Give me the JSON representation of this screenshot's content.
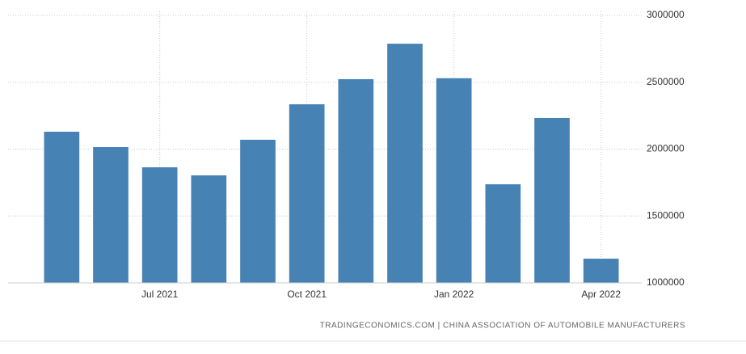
{
  "chart_data": {
    "type": "bar",
    "source": "TRADINGECONOMICS.COM  |  CHINA ASSOCIATION OF AUTOMOBILE MANUFACTURERS",
    "categories": [
      null,
      null,
      "Jul 2021",
      null,
      null,
      "Oct 2021",
      null,
      null,
      "Jan 2022",
      null,
      null,
      "Apr 2022"
    ],
    "values": [
      2130000,
      2015000,
      1864000,
      1804000,
      2070000,
      2335000,
      2523000,
      2788000,
      2530000,
      1737000,
      2233000,
      1181000
    ],
    "color": "#4682b4",
    "ylim": [
      1000000,
      3000000
    ],
    "yticks": [
      1000000,
      1500000,
      2000000,
      2500000,
      3000000
    ],
    "grid": true
  }
}
